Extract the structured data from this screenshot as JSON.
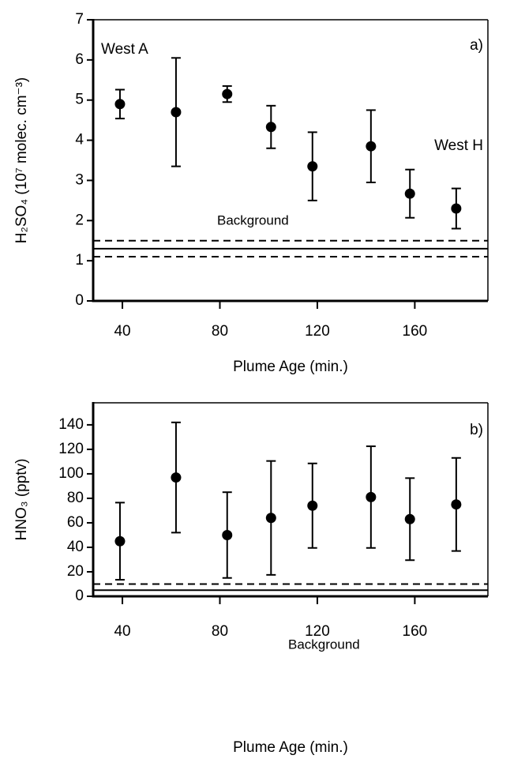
{
  "chart_data": [
    {
      "type": "errorbar",
      "panel_label": "a)",
      "x_label": "Plume Age (min.)",
      "y_label": "H₂SO₄  (10⁷ molec. cm⁻³)",
      "xlim": [
        28,
        190
      ],
      "xticks": [
        40,
        80,
        120,
        160
      ],
      "ylim": [
        0,
        7
      ],
      "yticks": [
        0,
        1,
        2,
        3,
        4,
        5,
        6,
        7
      ],
      "x": [
        39,
        62,
        83,
        101,
        118,
        142,
        158,
        177
      ],
      "series": [
        {
          "values": [
            4.9,
            4.7,
            5.15,
            4.33,
            3.35,
            3.85,
            2.67,
            2.3
          ],
          "errors": [
            0.36,
            1.35,
            0.2,
            0.53,
            0.85,
            0.9,
            0.6,
            0.5
          ],
          "color": "#000000"
        }
      ],
      "background": {
        "label": "Background",
        "solid": 1.3,
        "dashed": [
          1.5,
          1.1
        ]
      },
      "annotations": [
        "West A",
        "West H"
      ]
    },
    {
      "type": "errorbar",
      "panel_label": "b)",
      "x_label": "Plume Age  (min.)",
      "y_label": "HNO₃  (pptv)",
      "xlim": [
        28,
        190
      ],
      "xticks": [
        40,
        80,
        120,
        160
      ],
      "ylim": [
        0,
        158
      ],
      "yticks": [
        0,
        20,
        40,
        60,
        80,
        100,
        120,
        140
      ],
      "x": [
        39,
        62,
        83,
        101,
        118,
        142,
        158,
        177
      ],
      "series": [
        {
          "values": [
            45,
            97,
            50,
            64,
            74,
            81,
            63,
            75
          ],
          "errors": [
            31.5,
            45,
            35,
            46.5,
            34.5,
            41.5,
            33.5,
            38
          ],
          "color": "#000000"
        }
      ],
      "background": {
        "label": "Background",
        "solid": 5,
        "dashed": [
          10
        ]
      },
      "annotations": []
    }
  ]
}
